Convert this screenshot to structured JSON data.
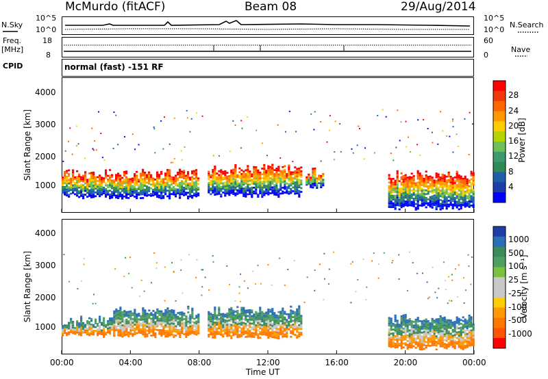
{
  "header": {
    "station": "McMurdo (fitACF)",
    "beam": "Beam 08",
    "date": "29/Aug/2014"
  },
  "strip": {
    "nsky_label": "N.Sky",
    "nsky_ticks": [
      "10^5",
      "10^0"
    ],
    "nsearch_label": "N.Search",
    "nsearch_ticks": [
      "10^5",
      "10^0"
    ],
    "freq_label_1": "Freq.",
    "freq_label_2": "[MHz]",
    "freq_ticks": [
      "18",
      "8"
    ],
    "nave_label": "Nave",
    "nave_ticks": [
      "60",
      "0"
    ],
    "cpid_label": "CPID",
    "cpid_value": "normal (fast) -151 RF"
  },
  "axes": {
    "ylabel": "Slant Range [km]",
    "xlabel": "Time UT",
    "x_ticks": [
      "00:00",
      "04:00",
      "08:00",
      "12:00",
      "16:00",
      "20:00",
      "00:00"
    ],
    "y_ticks": [
      "4000",
      "3000",
      "2000",
      "1000"
    ]
  },
  "colorbars": {
    "power": {
      "label": "Power [dB]",
      "ticks": [
        "28",
        "24",
        "20",
        "16",
        "12",
        "8",
        "4"
      ],
      "colors": [
        "#ff0000",
        "#f03a0a",
        "#ff6600",
        "#ff9900",
        "#ffcc00",
        "#b5d300",
        "#6fbf57",
        "#3d9970",
        "#2e8b57",
        "#1f5fa8",
        "#1e3caa",
        "#0000ff"
      ]
    },
    "velocity": {
      "label": "Velocity [m s⁻¹]",
      "ticks": [
        "1000",
        "500",
        "100",
        "25",
        "-25",
        "-100",
        "-500",
        "-1000"
      ],
      "colors": [
        "#1f3fa8",
        "#2a6fb8",
        "#3d8a5a",
        "#4ea060",
        "#7cc040",
        "#c8c8c8",
        "#c8c8c8",
        "#ffcc00",
        "#ff9900",
        "#ff7700",
        "#ff5500",
        "#ff0000"
      ]
    }
  },
  "chart_data": [
    {
      "type": "heatmap",
      "title": "Power",
      "xlabel": "Time UT",
      "ylabel": "Slant Range [km]",
      "xlim": [
        0,
        24
      ],
      "ylim": [
        180,
        4500
      ],
      "colorbar_label": "Power [dB]",
      "colorbar_range": [
        0,
        30
      ],
      "blobs": [
        {
          "t0": 0.0,
          "t1": 7.9,
          "r0": 600,
          "r1": 1550,
          "dominant": "green-yellow-orange",
          "peak_db": 24
        },
        {
          "t0": 8.5,
          "t1": 14.0,
          "r0": 650,
          "r1": 1700,
          "dominant": "green-orange-red",
          "peak_db": 28
        },
        {
          "t0": 14.2,
          "t1": 15.2,
          "r0": 900,
          "r1": 1600,
          "dominant": "green",
          "peak_db": 16
        },
        {
          "t0": 19.0,
          "t1": 24.0,
          "r0": 250,
          "r1": 1500,
          "dominant": "red-orange",
          "peak_db": 30
        }
      ]
    },
    {
      "type": "heatmap",
      "title": "Velocity",
      "xlabel": "Time UT",
      "ylabel": "Slant Range [km]",
      "xlim": [
        0,
        24
      ],
      "ylim": [
        180,
        4500
      ],
      "colorbar_label": "Velocity [m s⁻¹]",
      "colorbar_range": [
        -1000,
        1000
      ],
      "blobs": [
        {
          "t0": 0.0,
          "t1": 3.0,
          "r0": 700,
          "r1": 1400,
          "dominant": "orange",
          "velocity": -100
        },
        {
          "t0": 3.0,
          "t1": 8.0,
          "r0": 700,
          "r1": 1700,
          "dominant": "green",
          "velocity": 300
        },
        {
          "t0": 8.5,
          "t1": 14.0,
          "r0": 650,
          "r1": 1700,
          "dominant": "green-blue",
          "velocity": 200
        },
        {
          "t0": 19.0,
          "t1": 24.0,
          "r0": 300,
          "r1": 1450,
          "dominant": "orange",
          "velocity": -250
        }
      ]
    }
  ]
}
